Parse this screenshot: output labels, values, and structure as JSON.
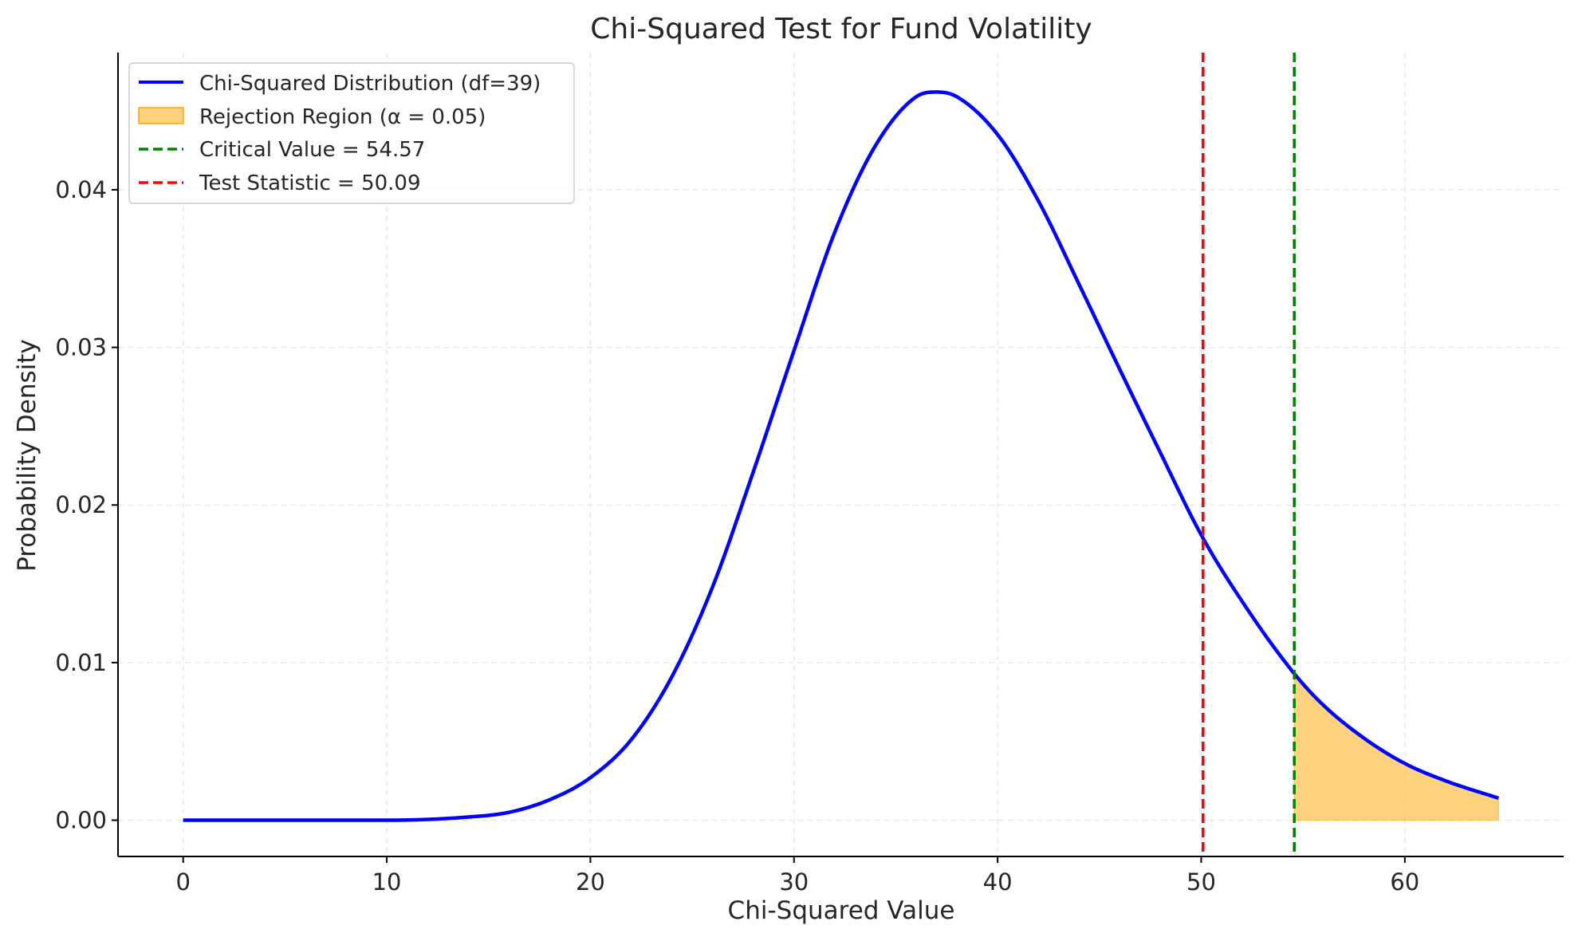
{
  "chart_data": {
    "type": "line",
    "title": "Chi-Squared Test for Fund Volatility",
    "xlabel": "Chi-Squared Value",
    "ylabel": "Probability Density",
    "xlim": [
      -3.2,
      67.8
    ],
    "ylim": [
      -0.0023,
      0.0487
    ],
    "x_ticks": [
      0,
      10,
      20,
      30,
      40,
      50,
      60
    ],
    "y_ticks": [
      0.0,
      0.01,
      0.02,
      0.03,
      0.04
    ],
    "x_tick_labels": [
      "0",
      "10",
      "20",
      "30",
      "40",
      "50",
      "60"
    ],
    "y_tick_labels": [
      "0.00",
      "0.01",
      "0.02",
      "0.03",
      "0.04"
    ],
    "grid": true,
    "legend_position": "upper-left",
    "degrees_of_freedom": 39,
    "alpha": 0.05,
    "series": [
      {
        "name": "Chi-Squared Distribution (df=39)",
        "color": "#0000ff",
        "x": [
          0,
          10,
          14,
          16,
          18,
          20,
          22,
          24,
          26,
          28,
          30,
          32,
          34,
          36,
          37,
          38,
          40,
          42,
          44,
          46,
          48,
          50,
          52,
          54.57,
          56,
          58,
          60,
          62,
          64.6
        ],
        "y": [
          0.0,
          0.0,
          0.0002,
          0.0005,
          0.0013,
          0.0027,
          0.0051,
          0.0091,
          0.0148,
          0.0221,
          0.0298,
          0.0373,
          0.0428,
          0.0459,
          0.0462,
          0.0459,
          0.0435,
          0.0393,
          0.034,
          0.0286,
          0.0233,
          0.0181,
          0.0139,
          0.0093,
          0.0073,
          0.0052,
          0.0036,
          0.0025,
          0.0014
        ]
      }
    ],
    "rejection_region": {
      "name": "Rejection Region (α = 0.05)",
      "color": "#ffa500",
      "x_start": 54.57,
      "x_end": 64.6
    },
    "vlines": [
      {
        "name": "Critical Value = 54.57",
        "x": 54.57,
        "color": "#008000"
      },
      {
        "name": "Test Statistic = 50.09",
        "x": 50.09,
        "color": "#ff0000"
      }
    ],
    "legend": [
      "Chi-Squared Distribution (df=39)",
      "Rejection Region (α = 0.05)",
      "Critical Value = 54.57",
      "Test Statistic = 50.09"
    ]
  }
}
